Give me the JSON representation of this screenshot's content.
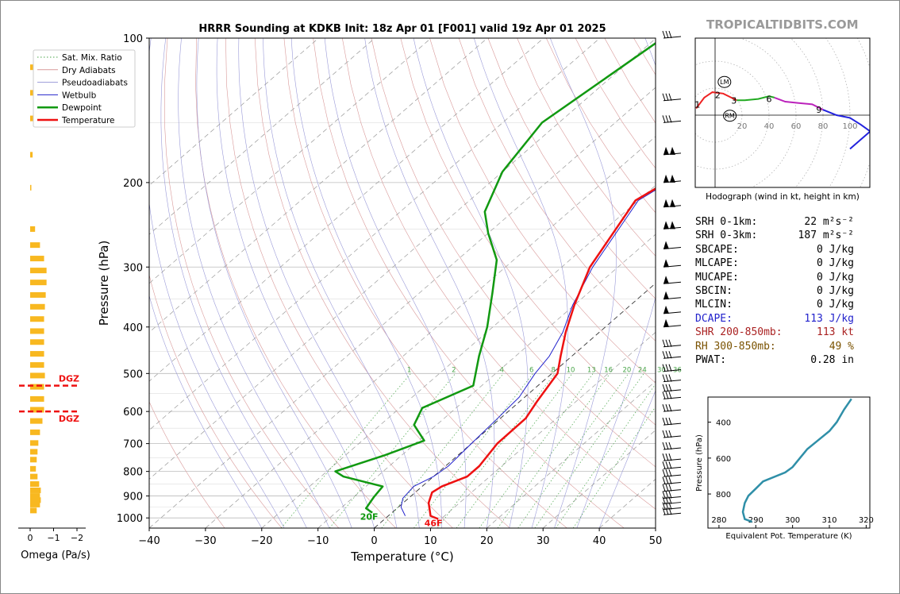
{
  "header": {
    "site": "TROPICALTIDBITS.COM"
  },
  "chart_data": [
    {
      "type": "line",
      "name": "skewt",
      "title": "HRRR Sounding at KDKB Init: 18z Apr 01 [F001] valid 19z Apr 01 2025",
      "xlabel": "Temperature (°C)",
      "ylabel": "Pressure (hPa)",
      "xlim": [
        -40,
        50
      ],
      "ylim": [
        1050,
        100
      ],
      "log_y": true,
      "x_ticks": [
        -40,
        -30,
        -20,
        -10,
        0,
        10,
        20,
        30,
        40,
        50
      ],
      "y_ticks": [
        100,
        200,
        300,
        400,
        500,
        600,
        700,
        800,
        900,
        1000
      ],
      "legend": [
        "Sat. Mix. Ratio",
        "Dry Adiabats",
        "Pseudoadiabats",
        "Wetbulb",
        "Dewpoint",
        "Temperature"
      ],
      "legend_position": "top-left",
      "mixing_ratio_labels": [
        "1",
        "2",
        "4",
        "6",
        "8",
        "10",
        "13",
        "16",
        "20",
        "24",
        "30",
        "36"
      ],
      "surface_labels": {
        "temperature": "46F",
        "dewpoint": "20F"
      },
      "series": [
        {
          "name": "Temperature",
          "color": "#ee1111",
          "points": [
            [
              -5.5,
              100
            ],
            [
              -13,
              150
            ],
            [
              -20.5,
              218
            ],
            [
              -15,
              300
            ],
            [
              -10,
              360
            ],
            [
              -6,
              410
            ],
            [
              -2,
              460
            ],
            [
              1,
              500
            ],
            [
              3,
              570
            ],
            [
              4.5,
              620
            ],
            [
              4.6,
              700
            ],
            [
              6,
              780
            ],
            [
              6,
              820
            ],
            [
              3.5,
              860
            ],
            [
              3,
              885
            ],
            [
              4.5,
              930
            ],
            [
              7.5,
              990
            ],
            [
              9.5,
              1005
            ]
          ]
        },
        {
          "name": "Dewpoint",
          "color": "#119911",
          "points": [
            [
              -48.8,
              100
            ],
            [
              -53,
              150
            ],
            [
              -50,
              190
            ],
            [
              -45,
              230
            ],
            [
              -40,
              255
            ],
            [
              -33,
              290
            ],
            [
              -27,
              340
            ],
            [
              -21,
              400
            ],
            [
              -16.5,
              460
            ],
            [
              -11.5,
              530
            ],
            [
              -16,
              590
            ],
            [
              -14,
              640
            ],
            [
              -9,
              690
            ],
            [
              -13,
              740
            ],
            [
              -18.5,
              800
            ],
            [
              -16,
              820
            ],
            [
              -7,
              860
            ],
            [
              -6.4,
              905
            ],
            [
              -5.5,
              955
            ],
            [
              -3.5,
              975
            ]
          ]
        },
        {
          "name": "Wetbulb",
          "color": "#2222cc",
          "points": [
            [
              -5.7,
              100
            ],
            [
              -13,
              150
            ],
            [
              -20,
              218
            ],
            [
              -14.5,
              300
            ],
            [
              -10.3,
              360
            ],
            [
              -6.5,
              410
            ],
            [
              -4,
              460
            ],
            [
              -3,
              500
            ],
            [
              -1,
              560
            ],
            [
              -0.5,
              620
            ],
            [
              0,
              700
            ],
            [
              0.5,
              780
            ],
            [
              0,
              820
            ],
            [
              -1.5,
              860
            ],
            [
              -1,
              910
            ],
            [
              0.5,
              950
            ],
            [
              3,
              990
            ]
          ]
        }
      ]
    },
    {
      "type": "bar",
      "name": "omega",
      "xlabel": "Omega (Pa/s)",
      "x_ticks": [
        "0",
        "−1",
        "−2"
      ],
      "dgz_label": "DGZ",
      "dgz_layer": [
        530,
        600
      ],
      "bars": [
        [
          115,
          0.05
        ],
        [
          130,
          0.07
        ],
        [
          147,
          0.07
        ],
        [
          175,
          0.03
        ],
        [
          205,
          0.01
        ],
        [
          250,
          0.06
        ],
        [
          270,
          0.12
        ],
        [
          288,
          0.17
        ],
        [
          305,
          0.2
        ],
        [
          323,
          0.2
        ],
        [
          343,
          0.19
        ],
        [
          363,
          0.18
        ],
        [
          385,
          0.17
        ],
        [
          408,
          0.17
        ],
        [
          430,
          0.17
        ],
        [
          455,
          0.17
        ],
        [
          480,
          0.17
        ],
        [
          505,
          0.18
        ],
        [
          533,
          0.17
        ],
        [
          565,
          0.17
        ],
        [
          595,
          0.17
        ],
        [
          628,
          0.15
        ],
        [
          663,
          0.12
        ],
        [
          698,
          0.1
        ],
        [
          728,
          0.09
        ],
        [
          756,
          0.08
        ],
        [
          790,
          0.07
        ],
        [
          820,
          0.09
        ],
        [
          850,
          0.11
        ],
        [
          876,
          0.13
        ],
        [
          900,
          0.12
        ],
        [
          918,
          0.13
        ],
        [
          938,
          0.12
        ],
        [
          965,
          0.08
        ]
      ]
    },
    {
      "type": "line",
      "name": "hodograph",
      "xlabel": "Hodograph (wind in kt, height in km)",
      "ring_labels": [
        "20",
        "40",
        "60",
        "80",
        "100"
      ],
      "height_labels": [
        {
          "text": "1",
          "u": -13,
          "v": 8
        },
        {
          "text": "2",
          "u": 2,
          "v": 15
        },
        {
          "text": "3",
          "u": 14,
          "v": 11
        },
        {
          "text": "6",
          "u": 40,
          "v": 12
        },
        {
          "text": "9",
          "u": 77,
          "v": 4
        }
      ],
      "storm_markers": [
        {
          "text": "LM",
          "u": 4,
          "v": 24
        },
        {
          "text": "RM",
          "u": 8,
          "v": -1
        }
      ],
      "segments": [
        {
          "color": "#ee2222",
          "points": [
            [
              -14,
              5
            ],
            [
              -8,
              13
            ],
            [
              -2,
              17
            ],
            [
              6,
              16
            ],
            [
              12,
              13
            ],
            [
              16,
              11
            ]
          ]
        },
        {
          "color": "#22aa22",
          "points": [
            [
              16,
              11
            ],
            [
              22,
              11
            ],
            [
              32,
              12
            ],
            [
              40,
              14
            ],
            [
              44,
              13
            ]
          ]
        },
        {
          "color": "#bb22bb",
          "points": [
            [
              44,
              13
            ],
            [
              52,
              10
            ],
            [
              62,
              9
            ],
            [
              72,
              8
            ],
            [
              80,
              4
            ]
          ]
        },
        {
          "color": "#2222dd",
          "points": [
            [
              80,
              4
            ],
            [
              90,
              0
            ],
            [
              100,
              -2
            ],
            [
              108,
              -7
            ],
            [
              115,
              -12
            ],
            [
              100,
              -25
            ]
          ]
        }
      ]
    },
    {
      "type": "line",
      "name": "theta-e",
      "xlabel": "Equivalent Pot. Temperature (K)",
      "ylabel": "Pressure (hPa)",
      "x_ticks": [
        280,
        290,
        300,
        310,
        320
      ],
      "y_ticks": [
        400,
        600,
        800
      ],
      "color": "#2f8fa8",
      "points": [
        [
          316,
          270
        ],
        [
          314,
          330
        ],
        [
          312,
          400
        ],
        [
          310,
          450
        ],
        [
          307,
          500
        ],
        [
          304,
          550
        ],
        [
          302,
          600
        ],
        [
          300,
          650
        ],
        [
          298,
          680
        ],
        [
          292,
          730
        ],
        [
          290,
          770
        ],
        [
          288,
          810
        ],
        [
          287,
          850
        ],
        [
          286.5,
          900
        ],
        [
          287,
          940
        ],
        [
          289,
          955
        ]
      ]
    }
  ],
  "stats": [
    {
      "label": "SRH 0-1km:",
      "value": "22 m²s⁻²",
      "color": "#000000"
    },
    {
      "label": "SRH 0-3km:",
      "value": "187 m²s⁻²",
      "color": "#000000"
    },
    {
      "label": "SBCAPE:",
      "value": "0 J/kg",
      "color": "#000000"
    },
    {
      "label": "MLCAPE:",
      "value": "0 J/kg",
      "color": "#000000"
    },
    {
      "label": "MUCAPE:",
      "value": "0 J/kg",
      "color": "#000000"
    },
    {
      "label": "SBCIN:",
      "value": "0 J/kg",
      "color": "#000000"
    },
    {
      "label": "MLCIN:",
      "value": "0 J/kg",
      "color": "#000000"
    },
    {
      "label": "DCAPE:",
      "value": "113 J/kg",
      "color": "#2222cc"
    },
    {
      "label": "SHR 200-850mb:",
      "value": "113 kt",
      "color": "#aa2222"
    },
    {
      "label": "RH 300-850mb:",
      "value": "49 %",
      "color": "#7a5200"
    },
    {
      "label": "PWAT:",
      "value": "0.28 in",
      "color": "#000000"
    }
  ]
}
